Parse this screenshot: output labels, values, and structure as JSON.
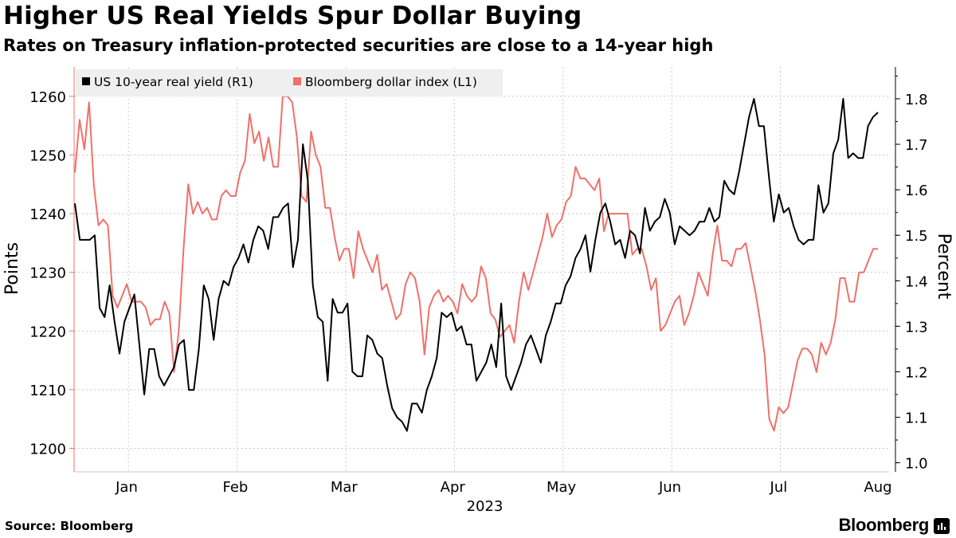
{
  "header": {
    "title": "Higher US Real Yields Spur Dollar Buying",
    "subtitle": "Rates on Treasury inflation-protected securities are close to a 14-year high"
  },
  "footer": {
    "source": "Source: Bloomberg",
    "brand": "Bloomberg",
    "brand_icon": "bloomberg-terminal-icon"
  },
  "chart_data": {
    "type": "line",
    "xlabel": "2023",
    "ylabel_left": "Points",
    "ylabel_right": "Percent",
    "x_tick_labels": [
      "Jan",
      "Feb",
      "Mar",
      "Apr",
      "May",
      "Jun",
      "Jul",
      "Aug"
    ],
    "y_left": {
      "min": 1196,
      "max": 1265,
      "ticks": [
        1200,
        1210,
        1220,
        1230,
        1240,
        1250,
        1260
      ]
    },
    "y_right": {
      "min": 0.98,
      "max": 1.87,
      "ticks": [
        "1.0",
        "1.1",
        "1.2",
        "1.3",
        "1.4",
        "1.5",
        "1.6",
        "1.7",
        "1.8"
      ]
    },
    "grid": true,
    "legend_position": "top-left",
    "series": [
      {
        "name": "US 10-year real yield  (R1)",
        "axis": "right",
        "color": "#000000",
        "values": [
          1.57,
          1.49,
          1.49,
          1.49,
          1.5,
          1.34,
          1.32,
          1.39,
          1.31,
          1.24,
          1.31,
          1.34,
          1.37,
          1.26,
          1.15,
          1.25,
          1.25,
          1.19,
          1.17,
          1.19,
          1.21,
          1.26,
          1.27,
          1.16,
          1.16,
          1.25,
          1.39,
          1.36,
          1.27,
          1.36,
          1.4,
          1.39,
          1.43,
          1.45,
          1.48,
          1.44,
          1.49,
          1.52,
          1.51,
          1.47,
          1.54,
          1.54,
          1.56,
          1.57,
          1.43,
          1.49,
          1.7,
          1.62,
          1.39,
          1.32,
          1.31,
          1.18,
          1.36,
          1.33,
          1.33,
          1.35,
          1.2,
          1.19,
          1.19,
          1.28,
          1.27,
          1.24,
          1.23,
          1.17,
          1.12,
          1.1,
          1.09,
          1.07,
          1.13,
          1.13,
          1.11,
          1.16,
          1.19,
          1.23,
          1.33,
          1.32,
          1.33,
          1.29,
          1.3,
          1.26,
          1.26,
          1.18,
          1.2,
          1.22,
          1.26,
          1.21,
          1.35,
          1.19,
          1.16,
          1.19,
          1.22,
          1.26,
          1.28,
          1.25,
          1.22,
          1.28,
          1.31,
          1.35,
          1.35,
          1.39,
          1.41,
          1.45,
          1.47,
          1.5,
          1.42,
          1.49,
          1.55,
          1.57,
          1.53,
          1.48,
          1.49,
          1.45,
          1.51,
          1.5,
          1.46,
          1.56,
          1.51,
          1.53,
          1.54,
          1.58,
          1.55,
          1.48,
          1.52,
          1.51,
          1.5,
          1.51,
          1.53,
          1.53,
          1.56,
          1.53,
          1.54,
          1.62,
          1.6,
          1.59,
          1.64,
          1.7,
          1.76,
          1.8,
          1.74,
          1.74,
          1.63,
          1.53,
          1.59,
          1.55,
          1.56,
          1.52,
          1.49,
          1.48,
          1.49,
          1.49,
          1.61,
          1.55,
          1.57,
          1.68,
          1.71,
          1.8,
          1.67,
          1.68,
          1.67,
          1.67,
          1.74,
          1.76,
          1.77
        ]
      },
      {
        "name": "Bloomberg dollar index (L1)",
        "axis": "left",
        "color": "#f0706a",
        "values": [
          1247,
          1256,
          1251,
          1259,
          1245,
          1238,
          1239,
          1238,
          1226,
          1224,
          1226,
          1228,
          1225,
          1225,
          1225,
          1224,
          1221,
          1222,
          1222,
          1225,
          1223,
          1213,
          1220,
          1234,
          1245,
          1240,
          1242,
          1240,
          1241,
          1239,
          1239,
          1243,
          1244,
          1243,
          1243,
          1247,
          1249,
          1257,
          1252,
          1254,
          1249,
          1253,
          1248,
          1248,
          1260,
          1260,
          1259,
          1253,
          1243,
          1242,
          1254,
          1250,
          1248,
          1241,
          1241,
          1236,
          1232,
          1234,
          1234,
          1229,
          1237,
          1234,
          1232,
          1230,
          1233,
          1227,
          1228,
          1225,
          1222,
          1223,
          1228,
          1230,
          1229,
          1225,
          1216,
          1224,
          1226,
          1227,
          1225,
          1226,
          1225,
          1223,
          1228,
          1226,
          1225,
          1226,
          1231,
          1229,
          1223,
          1222,
          1219,
          1220,
          1221,
          1218,
          1225,
          1230,
          1227,
          1230,
          1233,
          1236,
          1240,
          1236,
          1238,
          1239,
          1242,
          1243,
          1248,
          1246,
          1246,
          1245,
          1244,
          1246,
          1237,
          1240,
          1240,
          1240,
          1240,
          1240,
          1233,
          1234,
          1234,
          1231,
          1227,
          1229,
          1220,
          1221,
          1223,
          1225,
          1226,
          1221,
          1223,
          1226,
          1230,
          1228,
          1226,
          1233,
          1238,
          1232,
          1232,
          1231,
          1234,
          1234,
          1235,
          1231,
          1227,
          1222,
          1216,
          1205,
          1203,
          1207,
          1206,
          1207,
          1211,
          1215,
          1217,
          1217,
          1216,
          1213,
          1218,
          1216,
          1218,
          1222,
          1229,
          1229,
          1225,
          1225,
          1230,
          1230,
          1232,
          1234,
          1234
        ]
      }
    ]
  }
}
